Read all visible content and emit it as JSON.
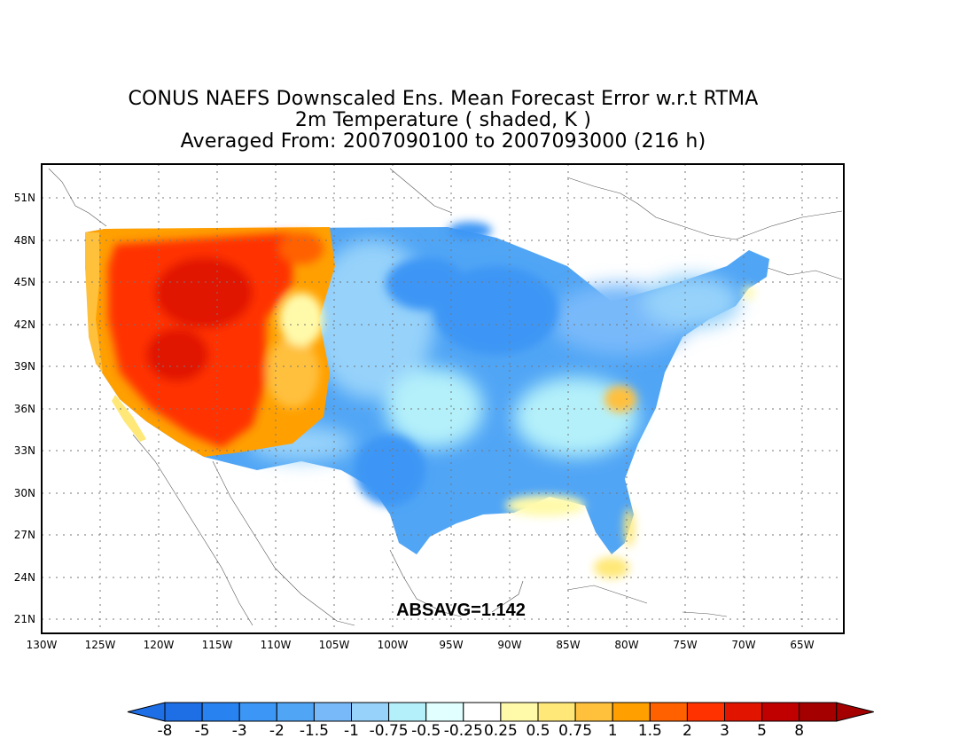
{
  "title": {
    "line1": "CONUS NAEFS Downscaled Ens. Mean Forecast Error w.r.t RTMA",
    "line2": "2m Temperature ( shaded, K )",
    "line3": "Averaged From: 2007090100 to 2007093000 (216 h)"
  },
  "annotation": "ABSAVG=1.142",
  "lon_labels": [
    "130W",
    "125W",
    "120W",
    "115W",
    "110W",
    "105W",
    "100W",
    "95W",
    "90W",
    "85W",
    "80W",
    "75W",
    "70W",
    "65W"
  ],
  "lat_labels": [
    "51N",
    "48N",
    "45N",
    "42N",
    "39N",
    "36N",
    "33N",
    "30N",
    "27N",
    "24N",
    "21N"
  ],
  "colorbar": {
    "labels": [
      "-8",
      "-5",
      "-3",
      "-2",
      "-1.5",
      "-1",
      "-0.75",
      "-0.5",
      "-0.25",
      "0.25",
      "0.5",
      "0.75",
      "1",
      "1.5",
      "2",
      "3",
      "5",
      "8"
    ],
    "colors": [
      "#1e6ee6",
      "#2882f0",
      "#3c96f5",
      "#50a5f5",
      "#78b9fa",
      "#96d2fa",
      "#b4f0fa",
      "#e1ffff",
      "#ffffff",
      "#fffaaa",
      "#ffe878",
      "#ffc03c",
      "#ffa000",
      "#ff6000",
      "#ff3200",
      "#e11400",
      "#c00000",
      "#a50000"
    ]
  },
  "chart_data": {
    "type": "heatmap",
    "title": "CONUS NAEFS Downscaled Ens. Mean Forecast Error w.r.t RTMA",
    "subtitle": "2m Temperature ( shaded, K )",
    "period": "Averaged From: 2007090100 to 2007093000 (216 h)",
    "xlim": [
      -130,
      -61
    ],
    "ylim": [
      20,
      52.5
    ],
    "grid": true,
    "regions": [
      {
        "region": "Pacific Northwest / Great Basin / California",
        "approx_value_K": 2
      },
      {
        "region": "Northern Rockies (Montana)",
        "approx_value_K": 1
      },
      {
        "region": "Pacific coast strip",
        "approx_value_K": 0.75
      },
      {
        "region": "Great Plains / Midwest",
        "approx_value_K": -1.5
      },
      {
        "region": "Upper Midwest / Great Lakes",
        "approx_value_K": -2
      },
      {
        "region": "Texas / Gulf coast",
        "approx_value_K": -2
      },
      {
        "region": "Carolinas Piedmont",
        "approx_value_K": 0.5
      },
      {
        "region": "Florida / northern Gulf coast",
        "approx_value_K": 0.5
      },
      {
        "region": "Northeast",
        "approx_value_K": -1
      }
    ]
  }
}
